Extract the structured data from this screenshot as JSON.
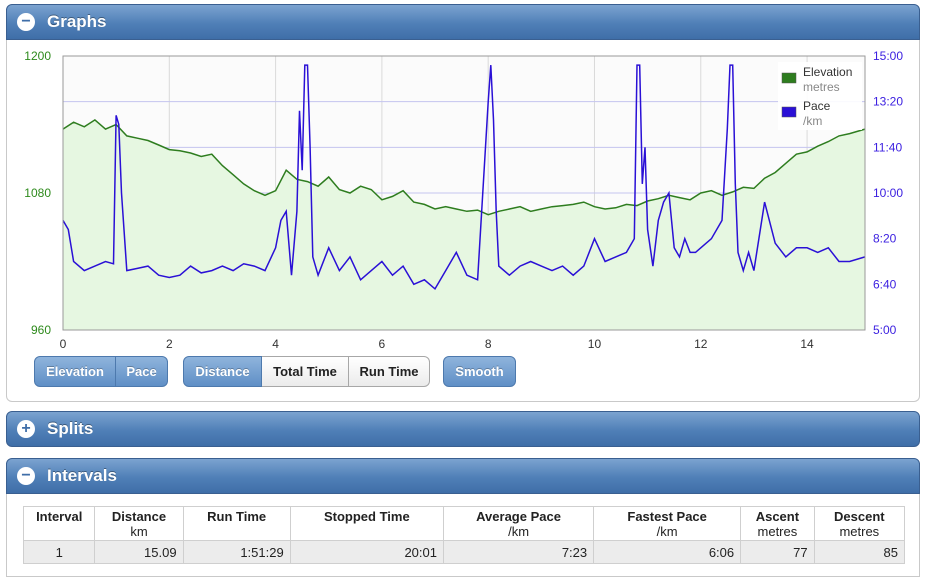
{
  "panels": {
    "graphs": {
      "title": "Graphs",
      "icon": "minus-icon"
    },
    "splits": {
      "title": "Splits",
      "icon": "plus-icon"
    },
    "intervals": {
      "title": "Intervals",
      "icon": "minus-icon"
    }
  },
  "colors": {
    "elevation": "#2e7d1f",
    "elevation_fill": "#e6f7e1",
    "pace": "#2a10d6",
    "header": "#4f7fb7",
    "active_button": "#6b97cc"
  },
  "buttons": {
    "metric": [
      {
        "label": "Elevation",
        "active": true
      },
      {
        "label": "Pace",
        "active": true
      }
    ],
    "axis": [
      {
        "label": "Distance",
        "active": true
      },
      {
        "label": "Total Time",
        "active": false
      },
      {
        "label": "Run Time",
        "active": false
      }
    ],
    "smooth": {
      "label": "Smooth",
      "active": true
    }
  },
  "chart_data": {
    "type": "line",
    "xlim": [
      0,
      15.09
    ],
    "x_ticks": [
      "0",
      "2",
      "4",
      "6",
      "8",
      "10",
      "12",
      "14"
    ],
    "y_left_ticks": [
      "960",
      "1080",
      "1200"
    ],
    "y_right_ticks": [
      "5:00",
      "6:40",
      "8:20",
      "10:00",
      "11:40",
      "13:20",
      "15:00"
    ],
    "grid": true,
    "legend_position": "top-right",
    "legend": [
      {
        "name": "Elevation",
        "unit": "metres"
      },
      {
        "name": "Pace",
        "unit": "/km"
      }
    ],
    "series": [
      {
        "name": "Elevation",
        "axis": "left",
        "ylim": [
          960,
          1200
        ],
        "x": [
          0,
          0.2,
          0.4,
          0.6,
          0.8,
          1.0,
          1.2,
          1.4,
          1.6,
          1.8,
          2.0,
          2.2,
          2.4,
          2.6,
          2.8,
          3.0,
          3.2,
          3.4,
          3.6,
          3.8,
          4.0,
          4.2,
          4.4,
          4.6,
          4.8,
          5.0,
          5.2,
          5.4,
          5.6,
          5.8,
          6.0,
          6.2,
          6.4,
          6.6,
          6.8,
          7.0,
          7.2,
          7.4,
          7.6,
          7.8,
          8.0,
          8.2,
          8.4,
          8.6,
          8.8,
          9.0,
          9.2,
          9.4,
          9.6,
          9.8,
          10.0,
          10.2,
          10.4,
          10.6,
          10.8,
          11.0,
          11.2,
          11.4,
          11.6,
          11.8,
          12.0,
          12.2,
          12.4,
          12.6,
          12.8,
          13.0,
          13.2,
          13.4,
          13.6,
          13.8,
          14.0,
          14.2,
          14.4,
          14.6,
          14.8,
          15.09
        ],
        "values": [
          1136,
          1142,
          1138,
          1144,
          1136,
          1140,
          1130,
          1128,
          1126,
          1122,
          1118,
          1117,
          1115,
          1112,
          1114,
          1104,
          1096,
          1088,
          1082,
          1078,
          1082,
          1100,
          1092,
          1090,
          1086,
          1094,
          1083,
          1080,
          1086,
          1083,
          1074,
          1077,
          1082,
          1072,
          1070,
          1066,
          1068,
          1066,
          1064,
          1065,
          1061,
          1064,
          1066,
          1068,
          1064,
          1066,
          1068,
          1069,
          1070,
          1072,
          1068,
          1066,
          1067,
          1070,
          1069,
          1073,
          1075,
          1078,
          1076,
          1074,
          1080,
          1082,
          1078,
          1081,
          1085,
          1084,
          1093,
          1098,
          1106,
          1114,
          1116,
          1121,
          1125,
          1130,
          1132,
          1136
        ]
      },
      {
        "name": "Pace",
        "axis": "right",
        "unit": "seconds per km",
        "ylim": [
          300,
          900
        ],
        "x": [
          0,
          0.1,
          0.2,
          0.4,
          0.6,
          0.8,
          0.95,
          1.0,
          1.05,
          1.1,
          1.2,
          1.4,
          1.6,
          1.8,
          2.0,
          2.2,
          2.4,
          2.6,
          2.8,
          3.0,
          3.2,
          3.4,
          3.6,
          3.8,
          4.0,
          4.1,
          4.2,
          4.3,
          4.4,
          4.45,
          4.5,
          4.55,
          4.6,
          4.65,
          4.7,
          4.8,
          5.0,
          5.2,
          5.4,
          5.6,
          5.8,
          6.0,
          6.2,
          6.4,
          6.6,
          6.8,
          7.0,
          7.2,
          7.4,
          7.6,
          7.8,
          8.0,
          8.05,
          8.1,
          8.15,
          8.2,
          8.4,
          8.6,
          8.8,
          9.0,
          9.2,
          9.4,
          9.6,
          9.8,
          10.0,
          10.2,
          10.4,
          10.6,
          10.75,
          10.8,
          10.85,
          10.9,
          10.95,
          11.0,
          11.1,
          11.2,
          11.3,
          11.4,
          11.5,
          11.6,
          11.7,
          11.8,
          11.9,
          12.0,
          12.2,
          12.4,
          12.5,
          12.55,
          12.6,
          12.65,
          12.7,
          12.8,
          12.9,
          13.0,
          13.2,
          13.4,
          13.6,
          13.8,
          14.0,
          14.2,
          14.4,
          14.6,
          14.8,
          15.09
        ],
        "values": [
          540,
          520,
          450,
          430,
          440,
          450,
          445,
          770,
          750,
          600,
          430,
          435,
          440,
          420,
          415,
          420,
          440,
          425,
          430,
          440,
          430,
          445,
          440,
          430,
          480,
          540,
          560,
          420,
          560,
          780,
          650,
          880,
          880,
          700,
          460,
          420,
          480,
          430,
          460,
          410,
          430,
          450,
          420,
          440,
          400,
          410,
          390,
          430,
          470,
          420,
          410,
          800,
          880,
          760,
          560,
          440,
          420,
          440,
          450,
          440,
          430,
          440,
          420,
          440,
          500,
          450,
          460,
          470,
          500,
          880,
          880,
          620,
          700,
          520,
          440,
          540,
          580,
          600,
          480,
          460,
          500,
          470,
          470,
          480,
          500,
          540,
          740,
          880,
          880,
          620,
          470,
          430,
          470,
          430,
          580,
          490,
          460,
          480,
          480,
          470,
          480,
          450,
          450,
          460
        ]
      }
    ]
  },
  "intervals_table": {
    "headers": [
      {
        "label": "Interval",
        "unit": ""
      },
      {
        "label": "Distance",
        "unit": "km"
      },
      {
        "label": "Run Time",
        "unit": ""
      },
      {
        "label": "Stopped Time",
        "unit": ""
      },
      {
        "label": "Average Pace",
        "unit": "/km"
      },
      {
        "label": "Fastest Pace",
        "unit": "/km"
      },
      {
        "label": "Ascent",
        "unit": "metres"
      },
      {
        "label": "Descent",
        "unit": "metres"
      }
    ],
    "rows": [
      [
        "1",
        "15.09",
        "1:51:29",
        "20:01",
        "7:23",
        "6:06",
        "77",
        "85"
      ]
    ]
  }
}
